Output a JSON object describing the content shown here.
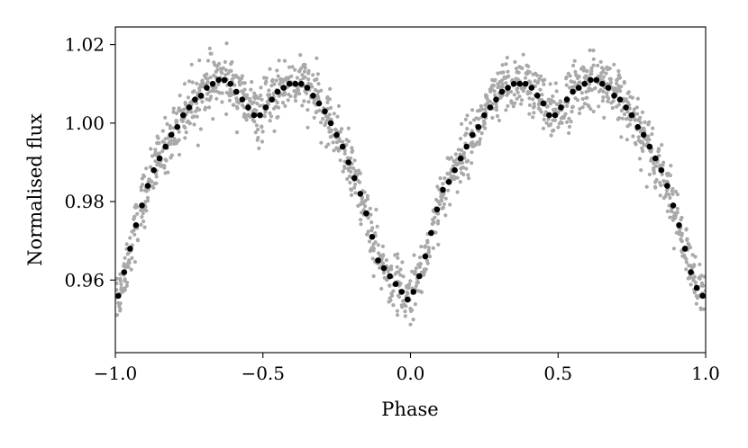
{
  "chart_data": {
    "type": "scatter",
    "title": "",
    "xlabel": "Phase",
    "ylabel": "Normalised flux",
    "xlim": [
      -1.0,
      1.0
    ],
    "ylim": [
      0.9415,
      1.0245
    ],
    "x_ticks": [
      {
        "value": -1.0,
        "label": "−1.0"
      },
      {
        "value": -0.5,
        "label": "−0.5"
      },
      {
        "value": 0.0,
        "label": "0.0"
      },
      {
        "value": 0.5,
        "label": "0.5"
      },
      {
        "value": 1.0,
        "label": "1.0"
      }
    ],
    "y_ticks": [
      {
        "value": 0.96,
        "label": "0.96"
      },
      {
        "value": 0.98,
        "label": "0.98"
      },
      {
        "value": 1.0,
        "label": "1.00"
      },
      {
        "value": 1.02,
        "label": "1.02"
      }
    ],
    "grid": false,
    "colors": {
      "raw": "#a9a9a9",
      "binned": "#000000"
    },
    "binned": {
      "x": [
        -0.99,
        -0.97,
        -0.95,
        -0.93,
        -0.91,
        -0.89,
        -0.87,
        -0.85,
        -0.83,
        -0.81,
        -0.79,
        -0.77,
        -0.75,
        -0.73,
        -0.71,
        -0.69,
        -0.67,
        -0.65,
        -0.63,
        -0.61,
        -0.59,
        -0.57,
        -0.55,
        -0.53,
        -0.51,
        -0.49,
        -0.47,
        -0.45,
        -0.43,
        -0.41,
        -0.39,
        -0.37,
        -0.35,
        -0.33,
        -0.31,
        -0.29,
        -0.27,
        -0.25,
        -0.23,
        -0.21,
        -0.19,
        -0.17,
        -0.15,
        -0.13,
        -0.11,
        -0.09,
        -0.07,
        -0.05,
        -0.03,
        -0.01,
        0.01,
        0.03,
        0.05,
        0.07,
        0.09,
        0.11,
        0.13,
        0.15,
        0.17,
        0.19,
        0.21,
        0.23,
        0.25,
        0.27,
        0.29,
        0.31,
        0.33,
        0.35,
        0.37,
        0.39,
        0.41,
        0.43,
        0.45,
        0.47,
        0.49,
        0.51,
        0.53,
        0.55,
        0.57,
        0.59,
        0.61,
        0.63,
        0.65,
        0.67,
        0.69,
        0.71,
        0.73,
        0.75,
        0.77,
        0.79,
        0.81,
        0.83,
        0.85,
        0.87,
        0.89,
        0.91,
        0.93,
        0.95,
        0.97,
        0.99
      ],
      "y": [
        0.956,
        0.962,
        0.968,
        0.974,
        0.979,
        0.984,
        0.988,
        0.991,
        0.994,
        0.997,
        0.999,
        1.002,
        1.004,
        1.006,
        1.007,
        1.009,
        1.01,
        1.011,
        1.011,
        1.01,
        1.008,
        1.006,
        1.004,
        1.002,
        1.002,
        1.004,
        1.006,
        1.008,
        1.009,
        1.01,
        1.01,
        1.01,
        1.009,
        1.007,
        1.005,
        1.003,
        1.0,
        0.997,
        0.994,
        0.99,
        0.986,
        0.982,
        0.977,
        0.971,
        0.965,
        0.963,
        0.961,
        0.959,
        0.957,
        0.955,
        0.957,
        0.961,
        0.966,
        0.972,
        0.978,
        0.983,
        0.985,
        0.988,
        0.991,
        0.994,
        0.997,
        0.999,
        1.002,
        1.004,
        1.006,
        1.008,
        1.009,
        1.01,
        1.01,
        1.01,
        1.009,
        1.007,
        1.005,
        1.002,
        1.002,
        1.004,
        1.006,
        1.008,
        1.009,
        1.01,
        1.011,
        1.011,
        1.01,
        1.009,
        1.007,
        1.006,
        1.004,
        1.002,
        0.999,
        0.997,
        0.994,
        0.991,
        0.988,
        0.984,
        0.979,
        0.974,
        0.968,
        0.962,
        0.958,
        0.956
      ]
    },
    "raw_scatter_sigma": 0.0035,
    "raw_points_per_bin": 16
  }
}
